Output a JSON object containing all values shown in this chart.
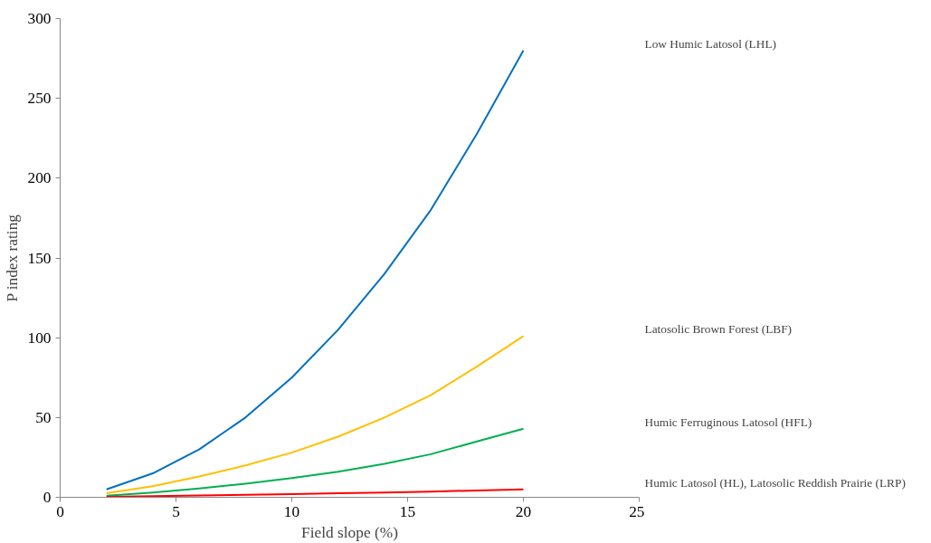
{
  "chart_data": {
    "type": "line",
    "xlabel": "Field slope (%)",
    "ylabel": "P index rating",
    "xlim": [
      0,
      25
    ],
    "xticks": [
      0,
      5,
      10,
      15,
      20,
      25
    ],
    "ylim": [
      0,
      300
    ],
    "yticks": [
      0,
      50,
      100,
      150,
      200,
      250,
      300
    ],
    "grid": false,
    "legend": false,
    "marker": "none",
    "line_style": "solid",
    "x": [
      2,
      4,
      6,
      8,
      10,
      12,
      14,
      16,
      18,
      20
    ],
    "series": [
      {
        "name": "Low Humic Latosol (LHL)",
        "color": "#0070c0",
        "values": [
          5,
          15,
          30,
          50,
          75,
          105,
          140,
          180,
          228,
          280
        ]
      },
      {
        "name": "Latosolic Brown Forest (LBF)",
        "color": "#ffc000",
        "values": [
          2.5,
          7,
          13,
          20,
          28,
          38,
          50,
          64,
          82,
          101
        ]
      },
      {
        "name": "Humic Ferruginous Latosol (HFL)",
        "color": "#00b050",
        "values": [
          1,
          3,
          5.5,
          8.5,
          12,
          16,
          21,
          27,
          35,
          43
        ]
      },
      {
        "name": "Humic Latosol (HL), Latosolic Reddish Prairie (LRP)",
        "color": "#ff0000",
        "values": [
          0.3,
          0.7,
          1.1,
          1.5,
          2,
          2.5,
          3,
          3.6,
          4.3,
          5
        ]
      }
    ]
  }
}
